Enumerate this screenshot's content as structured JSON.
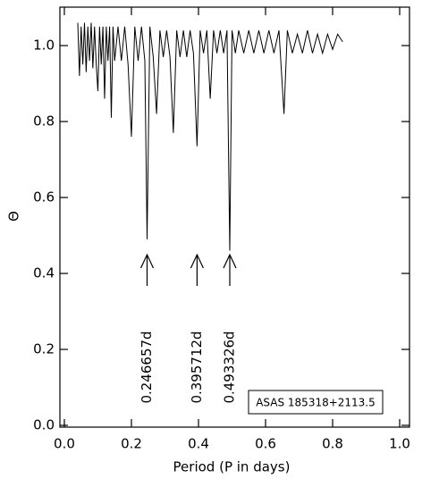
{
  "chart_data": {
    "type": "line",
    "x_label": "Period (P in days)",
    "y_label": "Θ",
    "color": "#000000",
    "x": [
      0.04,
      0.045,
      0.05,
      0.055,
      0.06,
      0.065,
      0.07,
      0.075,
      0.08,
      0.085,
      0.09,
      0.095,
      0.1,
      0.105,
      0.11,
      0.115,
      0.12,
      0.125,
      0.13,
      0.135,
      0.14,
      0.145,
      0.15,
      0.16,
      0.17,
      0.18,
      0.19,
      0.2,
      0.21,
      0.22,
      0.23,
      0.24,
      0.2467,
      0.255,
      0.265,
      0.275,
      0.285,
      0.295,
      0.305,
      0.315,
      0.325,
      0.335,
      0.345,
      0.355,
      0.365,
      0.375,
      0.385,
      0.3957,
      0.405,
      0.415,
      0.425,
      0.435,
      0.445,
      0.455,
      0.465,
      0.475,
      0.485,
      0.4933,
      0.5,
      0.51,
      0.52,
      0.535,
      0.55,
      0.565,
      0.58,
      0.595,
      0.61,
      0.625,
      0.64,
      0.655,
      0.665,
      0.68,
      0.695,
      0.71,
      0.725,
      0.74,
      0.755,
      0.77,
      0.785,
      0.8,
      0.815,
      0.83
    ],
    "values": [
      1.06,
      0.92,
      1.05,
      0.95,
      1.06,
      0.93,
      1.05,
      0.96,
      1.06,
      0.94,
      1.05,
      0.95,
      0.88,
      1.05,
      0.95,
      1.05,
      0.86,
      1.05,
      0.96,
      1.05,
      0.81,
      1.05,
      0.96,
      1.05,
      0.96,
      1.05,
      0.95,
      0.76,
      1.05,
      0.96,
      1.05,
      0.96,
      0.49,
      1.05,
      0.97,
      0.82,
      1.04,
      0.97,
      1.04,
      0.97,
      0.77,
      1.04,
      0.97,
      1.04,
      0.97,
      1.04,
      0.98,
      0.735,
      1.04,
      0.98,
      1.04,
      0.86,
      1.04,
      0.98,
      1.04,
      0.98,
      1.04,
      0.46,
      1.04,
      0.98,
      1.04,
      0.98,
      1.04,
      0.98,
      1.04,
      0.98,
      1.04,
      0.98,
      1.04,
      0.82,
      1.04,
      0.98,
      1.03,
      0.98,
      1.04,
      0.98,
      1.03,
      0.98,
      1.03,
      0.99,
      1.03,
      1.01
    ],
    "xlim": [
      -0.0133,
      1.0293
    ],
    "ylim": [
      -0.0047,
      1.1012
    ],
    "xticks": [
      {
        "value": 0,
        "label": "0.0"
      },
      {
        "value": 0.2,
        "label": "0.2"
      },
      {
        "value": 0.4,
        "label": "0.4"
      },
      {
        "value": 0.6,
        "label": "0.6"
      },
      {
        "value": 0.8,
        "label": "0.8"
      },
      {
        "value": 1,
        "label": "1.0"
      }
    ],
    "yticks": [
      {
        "value": 0,
        "label": "0.0"
      },
      {
        "value": 0.2,
        "label": "0.2"
      },
      {
        "value": 0.4,
        "label": "0.4"
      },
      {
        "value": 0.6,
        "label": "0.6"
      },
      {
        "value": 0.8,
        "label": "0.8"
      },
      {
        "value": 1,
        "label": "1.0"
      }
    ],
    "annotations": [
      {
        "text": "0.246657d",
        "x": 0.246657
      },
      {
        "text": "0.395712d",
        "x": 0.395712
      },
      {
        "text": "0.493326d",
        "x": 0.493326
      }
    ],
    "label_box": "ASAS 185318+2113.5"
  }
}
